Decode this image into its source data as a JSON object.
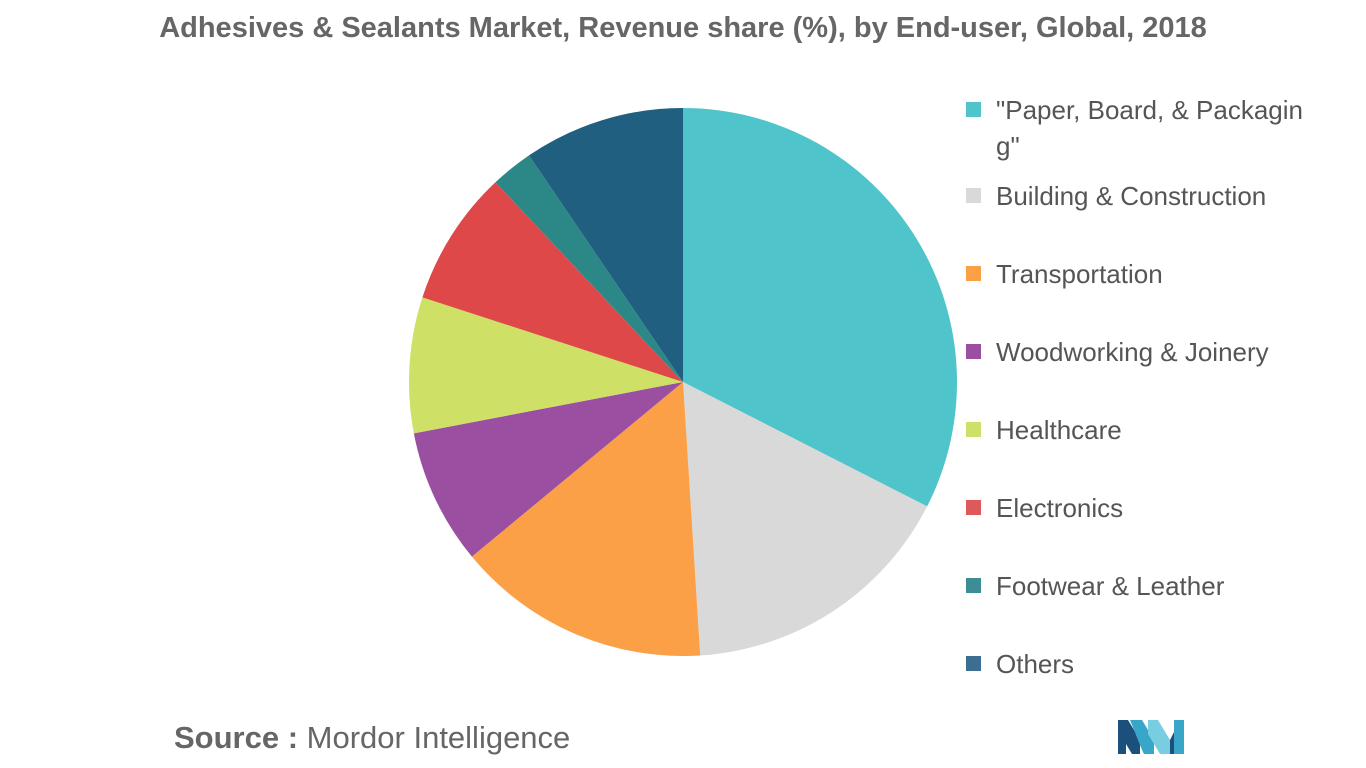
{
  "chart_data": {
    "type": "pie",
    "title": "Adhesives & Sealants Market, Revenue share (%), by End-user, Global, 2018",
    "categories": [
      "\"Paper, Board, & Packaging\"",
      "Building & Construction",
      "Transportation",
      "Woodworking & Joinery",
      "Healthcare",
      "Electronics",
      "Footwear & Leather",
      "Others"
    ],
    "values": [
      32.5,
      16.5,
      15.0,
      8.0,
      8.0,
      8.0,
      2.5,
      9.5
    ],
    "colors": [
      "#4fc4ca",
      "#d9d9d9",
      "#fba046",
      "#9a4fa0",
      "#cfe066",
      "#de4848",
      "#2c8887",
      "#205f80"
    ],
    "legend_position": "right",
    "legend_colors": [
      "#4fc4ca",
      "#d9d9d9",
      "#fba046",
      "#9a4fa0",
      "#cfe066",
      "#de5a5a",
      "#3d8e94",
      "#3b6e90"
    ]
  },
  "source": {
    "label": "Source :",
    "text": "Mordor Intelligence"
  },
  "logo": {
    "icon": "mordor-intelligence-logo-icon",
    "colors": [
      "#1b4f7c",
      "#38a6c8",
      "#79cde0"
    ]
  }
}
